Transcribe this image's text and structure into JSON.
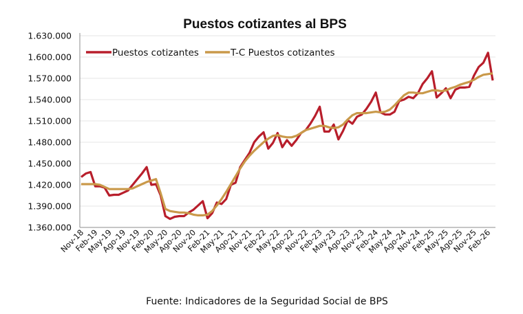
{
  "chart_data": {
    "type": "line",
    "title": "Puestos cotizantes al BPS",
    "xlabel": "",
    "ylabel": "",
    "ylim": [
      1360000,
      1630000
    ],
    "yticks": [
      1360000,
      1390000,
      1420000,
      1450000,
      1480000,
      1510000,
      1540000,
      1570000,
      1600000,
      1630000
    ],
    "ytick_labels": [
      "1.360.000",
      "1.390.000",
      "1.420.000",
      "1.450.000",
      "1.480.000",
      "1.510.000",
      "1.540.000",
      "1.570.000",
      "1.600.000",
      "1.630.000"
    ],
    "grid": true,
    "legend_position": "top-left",
    "x_tick_labels": [
      "Nov-18",
      "Feb-19",
      "May-19",
      "Ago-19",
      "Nov-19",
      "Feb-20",
      "May-20",
      "Ago-20",
      "Nov-20",
      "Feb-21",
      "May-21",
      "Ago-21",
      "Nov-21",
      "Feb-22",
      "May-22",
      "Ago-22",
      "Nov-22",
      "Feb-23",
      "May-23",
      "Ago-23",
      "Nov-23",
      "Feb-24",
      "May-24",
      "Ago-24",
      "Nov-24",
      "Feb-25",
      "May-25",
      "Ago-25",
      "Nov-25",
      "Feb-26"
    ],
    "x_tick_step_months": 3,
    "series": [
      {
        "name": "Puestos cotizantes",
        "color": "#B81E2B",
        "values": [
          1431000,
          1436000,
          1438000,
          1418000,
          1418000,
          1416000,
          1405000,
          1406000,
          1406000,
          1409000,
          1412000,
          1420000,
          1428000,
          1436000,
          1445000,
          1420000,
          1421000,
          1405000,
          1376000,
          1372000,
          1375000,
          1376000,
          1376000,
          1381000,
          1385000,
          1391000,
          1397000,
          1373000,
          1380000,
          1395000,
          1393000,
          1400000,
          1420000,
          1423000,
          1445000,
          1455000,
          1465000,
          1480000,
          1488000,
          1494000,
          1471000,
          1479000,
          1493000,
          1473000,
          1483000,
          1475000,
          1483000,
          1493000,
          1497000,
          1506000,
          1517000,
          1530000,
          1495000,
          1495000,
          1505000,
          1484000,
          1496000,
          1511000,
          1506000,
          1516000,
          1519000,
          1527000,
          1537000,
          1550000,
          1522000,
          1519000,
          1519000,
          1523000,
          1538000,
          1540000,
          1544000,
          1542000,
          1549000,
          1562000,
          1570000,
          1580000,
          1543000,
          1549000,
          1556000,
          1542000,
          1554000,
          1557000,
          1557000,
          1558000,
          1574000,
          1586000,
          1592000,
          1606000,
          1567000
        ]
      },
      {
        "name": "T-C Puestos cotizantes",
        "color": "#C9994A",
        "values": [
          1421000,
          1421000,
          1421000,
          1421000,
          1420000,
          1417000,
          1414000,
          1414000,
          1414000,
          1414000,
          1414000,
          1415000,
          1418000,
          1421000,
          1424000,
          1426000,
          1428000,
          1408000,
          1386000,
          1383000,
          1382000,
          1381000,
          1381000,
          1380000,
          1378000,
          1377000,
          1377000,
          1378000,
          1383000,
          1391000,
          1400000,
          1410000,
          1421000,
          1432000,
          1443000,
          1453000,
          1461000,
          1468000,
          1474000,
          1480000,
          1485000,
          1489000,
          1490000,
          1488000,
          1487000,
          1487000,
          1489000,
          1493000,
          1497000,
          1499000,
          1501000,
          1503000,
          1503000,
          1501000,
          1500000,
          1501000,
          1505000,
          1512000,
          1518000,
          1521000,
          1521000,
          1521000,
          1522000,
          1523000,
          1522000,
          1523000,
          1526000,
          1532000,
          1539000,
          1546000,
          1550000,
          1550000,
          1549000,
          1549000,
          1551000,
          1553000,
          1553000,
          1552000,
          1553000,
          1556000,
          1558000,
          1561000,
          1563000,
          1565000,
          1568000,
          1572000,
          1575000,
          1576000,
          1577000
        ]
      }
    ]
  },
  "source": "Fuente: Indicadores de la Seguridad Social de BPS"
}
